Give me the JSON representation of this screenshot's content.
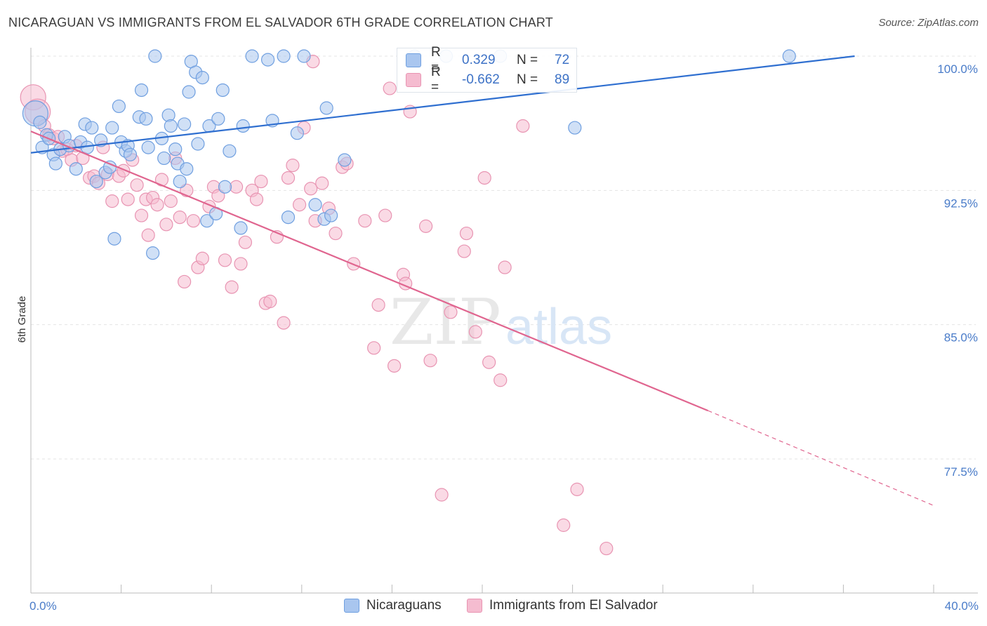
{
  "title": "NICARAGUAN VS IMMIGRANTS FROM EL SALVADOR 6TH GRADE CORRELATION CHART",
  "source": "Source: ZipAtlas.com",
  "watermark": {
    "zip": "ZIP",
    "atlas": "atlas"
  },
  "colors": {
    "blue_fill": "#a9c6ef",
    "blue_stroke": "#6f9fe0",
    "blue_line": "#2f6fd0",
    "pink_fill": "#f5bcd0",
    "pink_stroke": "#e894b2",
    "pink_line": "#e0658f",
    "grid": "#e4e4e4",
    "tick_text": "#4a7cc9"
  },
  "legend": {
    "rows": [
      {
        "r_label": "R =",
        "r_value": "0.329",
        "n_label": "N =",
        "n_value": "72"
      },
      {
        "r_label": "R =",
        "r_value": "-0.662",
        "n_label": "N =",
        "n_value": "89"
      }
    ]
  },
  "bottom_legend": [
    "Nicaraguans",
    "Immigrants from El Salvador"
  ],
  "chart_data": {
    "type": "scatter",
    "title": "NICARAGUAN VS IMMIGRANTS FROM EL SALVADOR 6TH GRADE CORRELATION CHART",
    "xlabel": "",
    "ylabel": "6th Grade",
    "xlim": [
      0,
      40
    ],
    "ylim": [
      71,
      101.5
    ],
    "x_tick_labels": [
      "0.0%",
      "40.0%"
    ],
    "y_ticks": [
      100.0,
      92.5,
      85.0,
      77.5
    ],
    "y_tick_labels": [
      "100.0%",
      "92.5%",
      "85.0%",
      "77.5%"
    ],
    "grid": true,
    "legend_placement": "top-center",
    "series": [
      {
        "name": "Nicaraguans",
        "trend": {
          "x": [
            0,
            36.5
          ],
          "y": [
            94.6,
            100.0
          ]
        },
        "points": [
          [
            0.2,
            96.8
          ],
          [
            0.4,
            96.3
          ],
          [
            0.5,
            94.9
          ],
          [
            0.7,
            95.6
          ],
          [
            0.8,
            95.4
          ],
          [
            1.0,
            94.5
          ],
          [
            1.1,
            94.0
          ],
          [
            1.3,
            94.8
          ],
          [
            1.5,
            95.5
          ],
          [
            1.7,
            95.0
          ],
          [
            2.0,
            93.7
          ],
          [
            2.2,
            95.2
          ],
          [
            2.4,
            96.2
          ],
          [
            2.5,
            94.9
          ],
          [
            2.7,
            96.0
          ],
          [
            2.9,
            93.0
          ],
          [
            3.1,
            95.3
          ],
          [
            3.3,
            93.5
          ],
          [
            3.5,
            93.8
          ],
          [
            3.6,
            96.0
          ],
          [
            3.7,
            89.8
          ],
          [
            3.9,
            97.2
          ],
          [
            4.0,
            95.2
          ],
          [
            4.2,
            94.7
          ],
          [
            4.3,
            95.0
          ],
          [
            4.4,
            94.5
          ],
          [
            4.8,
            96.6
          ],
          [
            4.9,
            98.1
          ],
          [
            5.1,
            96.5
          ],
          [
            5.2,
            94.9
          ],
          [
            5.4,
            89.0
          ],
          [
            5.5,
            100.0
          ],
          [
            5.8,
            95.4
          ],
          [
            5.9,
            94.3
          ],
          [
            6.1,
            96.7
          ],
          [
            6.2,
            96.1
          ],
          [
            6.4,
            94.8
          ],
          [
            6.5,
            94.0
          ],
          [
            6.8,
            96.2
          ],
          [
            6.9,
            93.7
          ],
          [
            7.0,
            98.0
          ],
          [
            7.1,
            99.7
          ],
          [
            7.3,
            99.1
          ],
          [
            7.4,
            95.1
          ],
          [
            7.6,
            98.8
          ],
          [
            7.8,
            90.8
          ],
          [
            7.9,
            96.1
          ],
          [
            8.2,
            91.2
          ],
          [
            8.3,
            96.5
          ],
          [
            8.5,
            98.1
          ],
          [
            8.6,
            92.7
          ],
          [
            8.8,
            94.7
          ],
          [
            9.3,
            90.4
          ],
          [
            9.4,
            96.1
          ],
          [
            9.8,
            100.0
          ],
          [
            10.5,
            99.8
          ],
          [
            10.7,
            96.4
          ],
          [
            11.2,
            100.0
          ],
          [
            11.4,
            91.0
          ],
          [
            11.8,
            95.7
          ],
          [
            12.1,
            100.0
          ],
          [
            12.6,
            91.7
          ],
          [
            13.0,
            90.9
          ],
          [
            13.1,
            97.1
          ],
          [
            13.9,
            94.2
          ],
          [
            17.0,
            100.0
          ],
          [
            20.8,
            100.0
          ],
          [
            24.1,
            96.0
          ],
          [
            33.6,
            100.0
          ],
          [
            18.4,
            100.0
          ],
          [
            13.3,
            91.1
          ],
          [
            6.6,
            93.0
          ]
        ]
      },
      {
        "name": "Immigrants from El Salvador",
        "trend": {
          "x": [
            0,
            30.0
          ],
          "y": [
            95.8,
            80.2
          ]
        },
        "trend_dashed": {
          "x": [
            30.0,
            40.0
          ],
          "y": [
            80.2,
            74.9
          ]
        },
        "points": [
          [
            0.1,
            97.7
          ],
          [
            0.3,
            96.9
          ],
          [
            0.6,
            96.1
          ],
          [
            0.8,
            95.6
          ],
          [
            1.0,
            95.4
          ],
          [
            1.2,
            95.5
          ],
          [
            1.4,
            94.7
          ],
          [
            1.6,
            94.8
          ],
          [
            1.8,
            94.2
          ],
          [
            2.0,
            95.0
          ],
          [
            2.3,
            94.3
          ],
          [
            2.6,
            93.2
          ],
          [
            2.8,
            93.3
          ],
          [
            3.0,
            92.9
          ],
          [
            3.2,
            94.9
          ],
          [
            3.4,
            93.4
          ],
          [
            3.6,
            91.9
          ],
          [
            3.9,
            93.3
          ],
          [
            4.1,
            93.6
          ],
          [
            4.3,
            92.0
          ],
          [
            4.5,
            94.2
          ],
          [
            4.7,
            92.8
          ],
          [
            4.9,
            91.1
          ],
          [
            5.1,
            92.0
          ],
          [
            5.2,
            90.0
          ],
          [
            5.4,
            92.1
          ],
          [
            5.6,
            91.7
          ],
          [
            5.8,
            93.1
          ],
          [
            6.0,
            90.6
          ],
          [
            6.2,
            91.9
          ],
          [
            6.4,
            94.3
          ],
          [
            6.6,
            91.0
          ],
          [
            6.8,
            87.4
          ],
          [
            6.9,
            92.5
          ],
          [
            7.2,
            90.8
          ],
          [
            7.4,
            88.2
          ],
          [
            7.6,
            88.7
          ],
          [
            7.9,
            91.6
          ],
          [
            8.1,
            92.7
          ],
          [
            8.3,
            92.2
          ],
          [
            8.6,
            88.6
          ],
          [
            8.9,
            87.1
          ],
          [
            9.1,
            92.7
          ],
          [
            9.3,
            88.4
          ],
          [
            9.5,
            89.6
          ],
          [
            9.8,
            92.5
          ],
          [
            10.0,
            92.0
          ],
          [
            10.2,
            93.0
          ],
          [
            10.4,
            86.2
          ],
          [
            10.6,
            86.3
          ],
          [
            10.9,
            89.9
          ],
          [
            11.2,
            85.1
          ],
          [
            11.4,
            93.2
          ],
          [
            11.6,
            93.9
          ],
          [
            11.9,
            91.7
          ],
          [
            12.1,
            96.0
          ],
          [
            12.4,
            92.6
          ],
          [
            12.6,
            90.8
          ],
          [
            12.9,
            92.9
          ],
          [
            13.2,
            91.5
          ],
          [
            13.5,
            90.1
          ],
          [
            13.8,
            93.8
          ],
          [
            14.0,
            94.0
          ],
          [
            14.3,
            88.4
          ],
          [
            14.8,
            90.8
          ],
          [
            15.2,
            83.7
          ],
          [
            15.4,
            86.1
          ],
          [
            15.7,
            91.1
          ],
          [
            15.9,
            98.2
          ],
          [
            16.1,
            82.7
          ],
          [
            16.5,
            87.8
          ],
          [
            16.6,
            87.3
          ],
          [
            16.8,
            96.9
          ],
          [
            17.5,
            90.5
          ],
          [
            17.7,
            83.0
          ],
          [
            18.2,
            75.5
          ],
          [
            18.6,
            85.7
          ],
          [
            19.2,
            89.1
          ],
          [
            19.3,
            90.1
          ],
          [
            19.7,
            84.6
          ],
          [
            20.1,
            93.2
          ],
          [
            20.3,
            82.9
          ],
          [
            20.8,
            81.9
          ],
          [
            21.0,
            88.2
          ],
          [
            21.8,
            96.1
          ],
          [
            23.6,
            73.8
          ],
          [
            24.2,
            75.8
          ],
          [
            25.5,
            72.5
          ],
          [
            12.5,
            99.7
          ]
        ]
      }
    ]
  }
}
